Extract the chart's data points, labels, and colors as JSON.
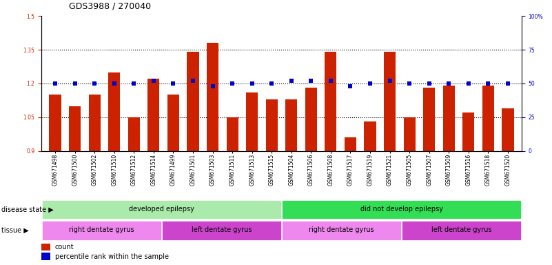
{
  "title": "GDS3988 / 270040",
  "samples": [
    "GSM671498",
    "GSM671500",
    "GSM671502",
    "GSM671510",
    "GSM671512",
    "GSM671514",
    "GSM671499",
    "GSM671501",
    "GSM671503",
    "GSM671511",
    "GSM671513",
    "GSM671515",
    "GSM671504",
    "GSM671506",
    "GSM671508",
    "GSM671517",
    "GSM671519",
    "GSM671521",
    "GSM671505",
    "GSM671507",
    "GSM671509",
    "GSM671516",
    "GSM671518",
    "GSM671520"
  ],
  "bar_values": [
    1.15,
    1.1,
    1.15,
    1.25,
    1.05,
    1.22,
    1.15,
    1.34,
    1.38,
    1.05,
    1.16,
    1.13,
    1.13,
    1.18,
    1.34,
    0.96,
    1.03,
    1.34,
    1.05,
    1.18,
    1.19,
    1.07,
    1.19,
    1.09
  ],
  "percentile_values": [
    50,
    50,
    50,
    50,
    50,
    52,
    50,
    52,
    48,
    50,
    50,
    50,
    52,
    52,
    52,
    48,
    50,
    52,
    50,
    50,
    50,
    50,
    50,
    50
  ],
  "bar_color": "#cc2200",
  "percentile_color": "#0000cc",
  "ylim_left": [
    0.9,
    1.5
  ],
  "ylim_right": [
    0,
    100
  ],
  "yticks_left": [
    0.9,
    1.05,
    1.2,
    1.35,
    1.5
  ],
  "yticks_right": [
    0,
    25,
    50,
    75,
    100
  ],
  "disease_state_groups": [
    {
      "label": "developed epilepsy",
      "start": 0,
      "end": 12,
      "color": "#aaeaaa"
    },
    {
      "label": "did not develop epilepsy",
      "start": 12,
      "end": 24,
      "color": "#33dd55"
    }
  ],
  "tissue_groups": [
    {
      "label": "right dentate gyrus",
      "start": 0,
      "end": 6,
      "color": "#ee88ee"
    },
    {
      "label": "left dentate gyrus",
      "start": 6,
      "end": 12,
      "color": "#cc44cc"
    },
    {
      "label": "right dentate gyrus",
      "start": 12,
      "end": 18,
      "color": "#ee88ee"
    },
    {
      "label": "left dentate gyrus",
      "start": 18,
      "end": 24,
      "color": "#cc44cc"
    }
  ],
  "dotted_gridlines": [
    1.05,
    1.2,
    1.35
  ],
  "bar_width": 0.6,
  "background_color": "#ffffff",
  "title_fontsize": 9,
  "tick_fontsize": 5.5,
  "annot_fontsize": 7
}
